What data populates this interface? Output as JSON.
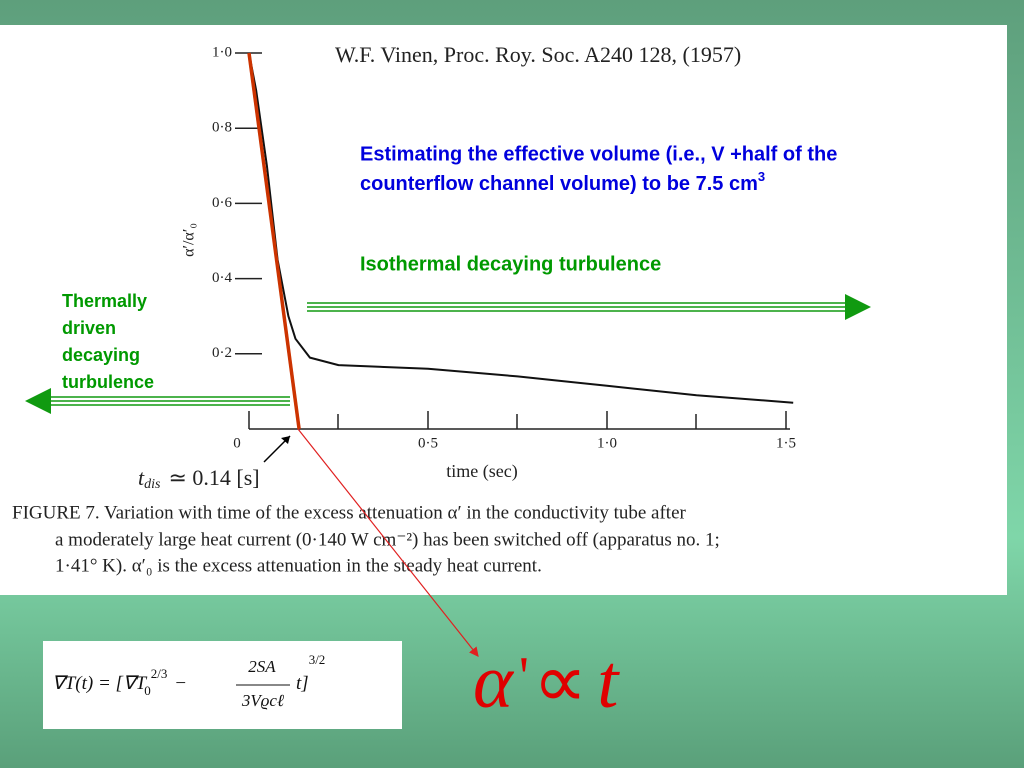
{
  "chart_data": {
    "type": "line",
    "title": "W.F. Vinen, Proc. Roy. Soc. A240 128, (1957)",
    "y_label": "α′/α′₀",
    "x_label": "time (sec)",
    "xlim": [
      0,
      1.5
    ],
    "ylim": [
      0,
      1.0
    ],
    "xticks": [
      0,
      {
        "value": 0.5,
        "label": "0·5"
      },
      {
        "value": 1.0,
        "label": "1·0"
      },
      {
        "value": 1.5,
        "label": "1·5"
      }
    ],
    "yticks": [
      {
        "value": 0.2,
        "label": "0·2"
      },
      {
        "value": 0.4,
        "label": "0·4"
      },
      {
        "value": 0.6,
        "label": "0·6"
      },
      {
        "value": 0.8,
        "label": "0·8"
      },
      {
        "value": 1.0,
        "label": "1·0"
      }
    ],
    "series": [
      {
        "color": "#111111",
        "x": [
          0,
          0.02,
          0.05,
          0.08,
          0.11,
          0.13,
          0.17,
          0.25,
          0.5,
          0.75,
          1.0,
          1.25,
          1.52
        ],
        "values": [
          1.0,
          0.9,
          0.7,
          0.45,
          0.3,
          0.24,
          0.19,
          0.17,
          0.16,
          0.14,
          0.115,
          0.09,
          0.07
        ]
      },
      {
        "color": "#cc3300",
        "x": [
          0,
          0.14
        ],
        "values": [
          1.0,
          0
        ]
      }
    ],
    "t_dis": {
      "symbol": "t",
      "subscript": "dis",
      "rest": "≃ 0.14 [s]"
    },
    "caption": [
      "FIGURE 7. Variation with time of the excess attenuation α′ in the conductivity tube after",
      "a moderately large heat current (0·140 W cm⁻²) has been switched off (apparatus no. 1;",
      "1·41° K).  α′₀ is the excess attenuation in the steady heat current."
    ]
  },
  "slide": {
    "estimate": {
      "lines": [
        "Estimating the effective volume (i.e., V +half of the",
        "counterflow channel volume) to be 7.5 cm"
      ],
      "superscript": "3"
    },
    "isothermal": "Isothermal decaying turbulence",
    "thermal": [
      "Thermally",
      "driven",
      "decaying",
      "turbulence"
    ],
    "formula": {
      "lhs": "∇T(t) = [∇T",
      "sub": "0",
      "sup1": "2/3",
      "minus": "−",
      "num": "2SA",
      "den": "3Vϱcℓ",
      "t": "t]",
      "sup2": "3/2"
    },
    "proportionality": [
      "α",
      "'",
      "∝",
      "t"
    ]
  }
}
